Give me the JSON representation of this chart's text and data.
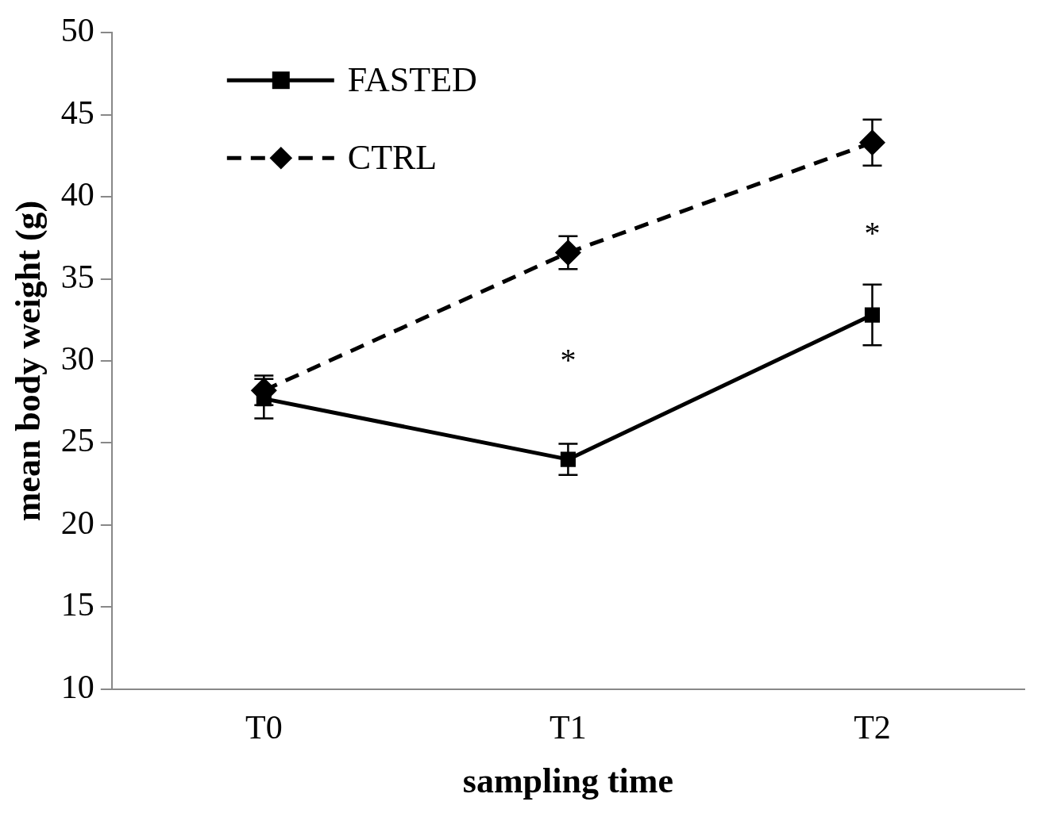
{
  "chart_data": {
    "type": "line",
    "xlabel": "sampling time",
    "ylabel": "mean body weight (g)",
    "categories": [
      "T0",
      "T1",
      "T2"
    ],
    "series": [
      {
        "name": "FASTED",
        "color": "#000000",
        "values": [
          27.7,
          24.0,
          32.8
        ],
        "errors": [
          1.2,
          0.95,
          1.85
        ],
        "marker": "square",
        "line_style": "solid"
      },
      {
        "name": "CTRL",
        "color": "#000000",
        "values": [
          28.2,
          36.6,
          43.3
        ],
        "errors": [
          0.9,
          1.0,
          1.4
        ],
        "marker": "diamond",
        "line_style": "dashed"
      }
    ],
    "ylim": [
      10,
      50
    ],
    "yticks": [
      10,
      15,
      20,
      25,
      30,
      35,
      40,
      45,
      50
    ],
    "grid": false,
    "legend": "top left",
    "annotations": [
      "*",
      "*"
    ]
  }
}
